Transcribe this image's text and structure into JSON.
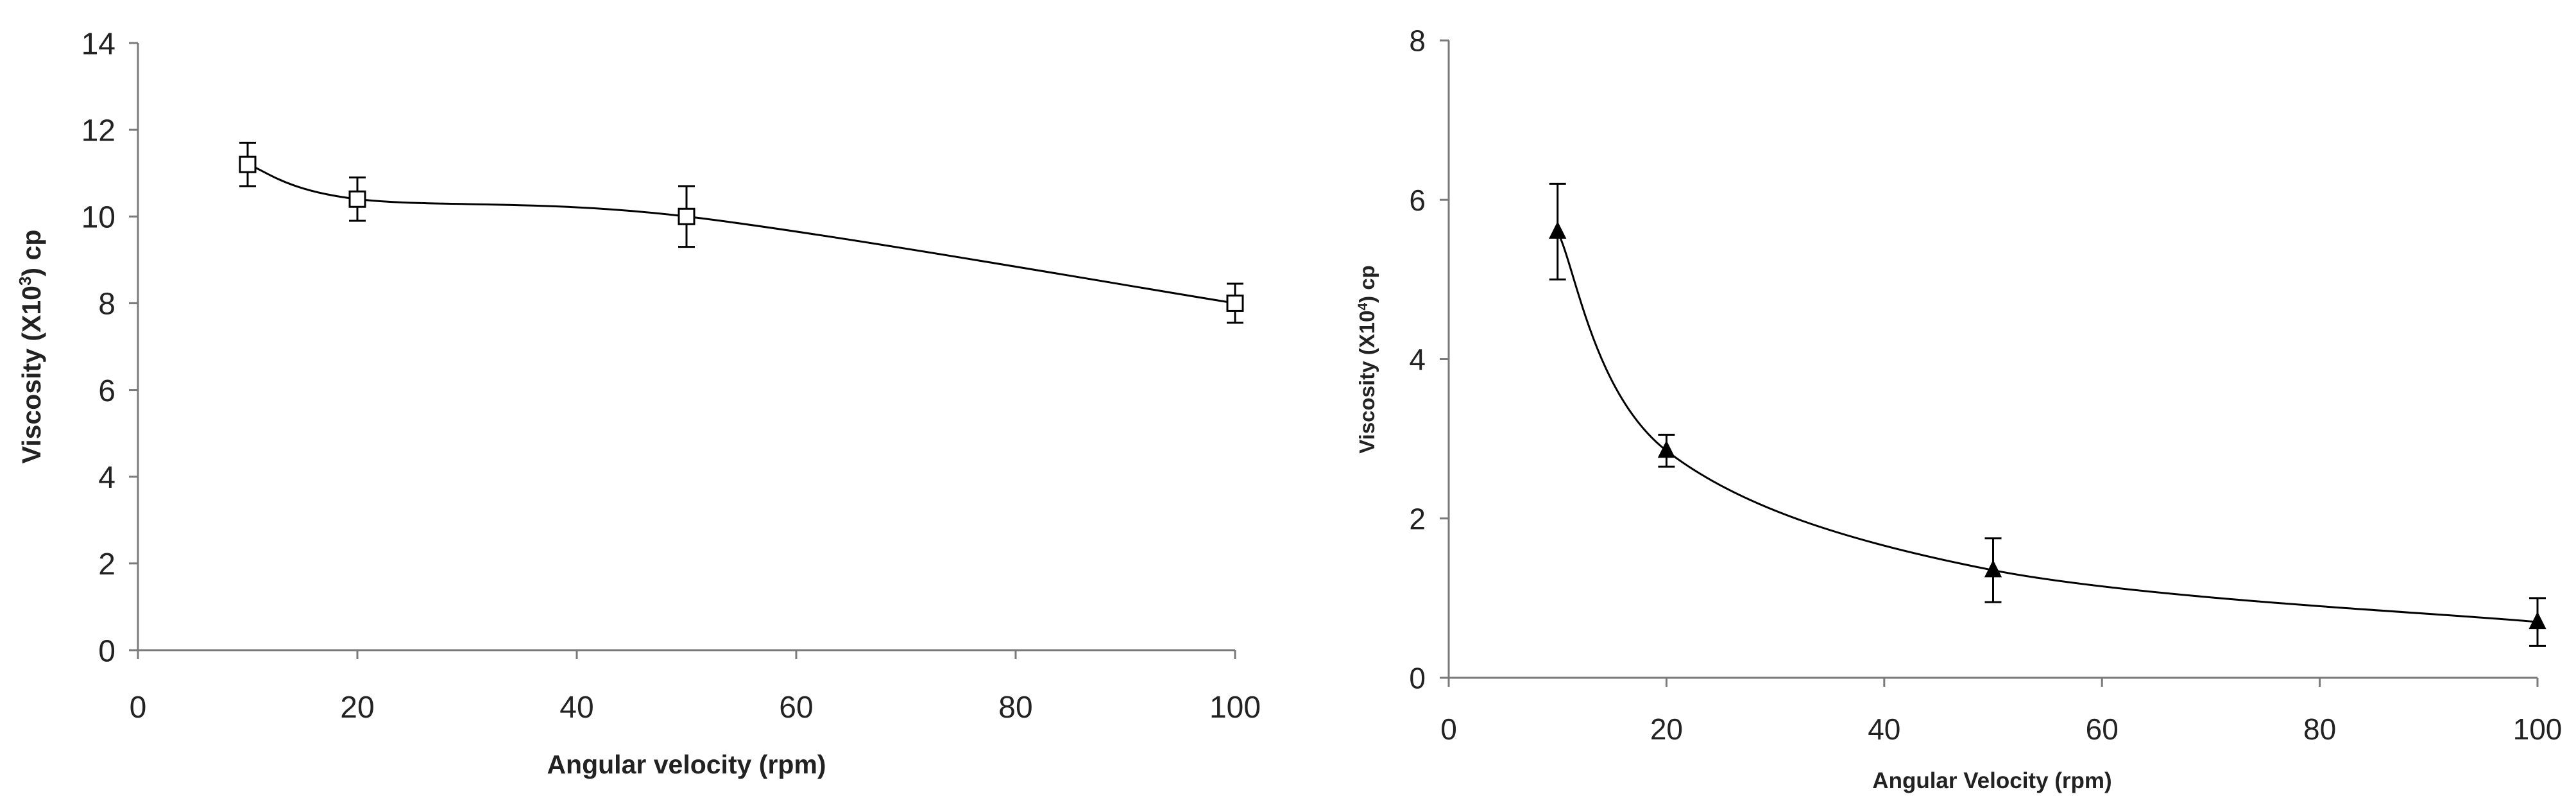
{
  "chart_data": [
    {
      "type": "line",
      "marker": "open-square",
      "xlabel": "Angular velocity (rpm)",
      "ylabel": {
        "base": "Viscosity (X10",
        "sup": "3",
        "tail": ") cp"
      },
      "xlim": [
        0,
        100
      ],
      "ylim": [
        0,
        14
      ],
      "xticks": [
        "0",
        "20",
        "40",
        "60",
        "80",
        "100"
      ],
      "yticks": [
        "0",
        "2",
        "4",
        "6",
        "8",
        "10",
        "12",
        "14"
      ],
      "grid": false,
      "series": [
        {
          "x": [
            10,
            20,
            50,
            100
          ],
          "y": [
            11.2,
            10.4,
            10.0,
            8.0
          ],
          "error": [
            0.5,
            0.5,
            0.7,
            0.45
          ]
        }
      ]
    },
    {
      "type": "line",
      "marker": "filled-triangle",
      "xlabel": "Angular Velocity (rpm)",
      "ylabel": {
        "base": "Viscosity (X10",
        "sup": "4",
        "tail": ") cp"
      },
      "xlim": [
        0,
        100
      ],
      "ylim": [
        0,
        8
      ],
      "xticks": [
        "0",
        "20",
        "40",
        "60",
        "80",
        "100"
      ],
      "yticks": [
        "0",
        "2",
        "4",
        "6",
        "8"
      ],
      "grid": false,
      "series": [
        {
          "x": [
            10,
            20,
            50,
            100
          ],
          "y": [
            5.6,
            2.85,
            1.35,
            0.7
          ],
          "error": [
            0.6,
            0.2,
            0.4,
            0.3
          ]
        }
      ]
    }
  ]
}
